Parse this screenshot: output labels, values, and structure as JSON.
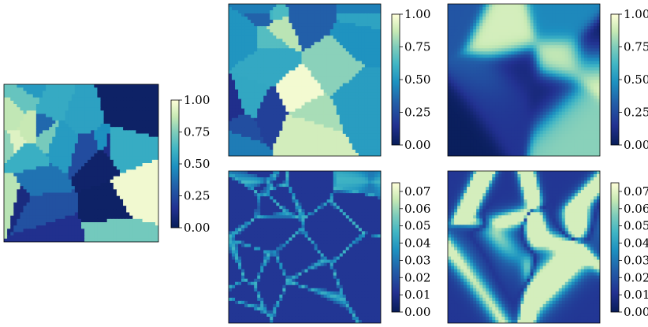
{
  "chart_data": [
    {
      "type": "heatmap",
      "title": "",
      "colormap": "YlGnBu_r",
      "cbar": {
        "ticks": [
          "0.00",
          "0.25",
          "0.50",
          "0.75",
          "1.00"
        ],
        "range": [
          0,
          1
        ]
      },
      "seed": 11,
      "cells": 26,
      "smooth": 0,
      "edges": false,
      "grid_rows": 10,
      "grid_cols": 10
    },
    {
      "type": "heatmap",
      "title": "",
      "colormap": "YlGnBu_r",
      "cbar": {
        "ticks": [
          "0.00",
          "0.25",
          "0.50",
          "0.75",
          "1.00"
        ],
        "range": [
          0,
          1
        ]
      },
      "seed": 23,
      "cells": 22,
      "smooth": 0,
      "edges": false,
      "grid_rows": 10,
      "grid_cols": 10
    },
    {
      "type": "heatmap",
      "title": "",
      "colormap": "YlGnBu_r",
      "cbar": {
        "ticks": [
          "0.00",
          "0.25",
          "0.50",
          "0.75",
          "1.00"
        ],
        "range": [
          0,
          1
        ]
      },
      "seed": 37,
      "cells": 14,
      "smooth": 1,
      "edges": false,
      "grid_rows": 10,
      "grid_cols": 10
    },
    {
      "type": "heatmap",
      "title": "",
      "colormap": "YlGnBu_r",
      "cbar": {
        "ticks": [
          "0.00",
          "0.01",
          "0.02",
          "0.03",
          "0.04",
          "0.05",
          "0.06",
          "0.07"
        ],
        "range": [
          0,
          0.075
        ]
      },
      "seed": 23,
      "cells": 22,
      "smooth": 0,
      "edges": true,
      "grid_rows": 10,
      "grid_cols": 10
    },
    {
      "type": "heatmap",
      "title": "",
      "colormap": "YlGnBu_r",
      "cbar": {
        "ticks": [
          "0.00",
          "0.01",
          "0.02",
          "0.03",
          "0.04",
          "0.05",
          "0.06",
          "0.07"
        ],
        "range": [
          0,
          0.075
        ]
      },
      "seed": 37,
      "cells": 14,
      "smooth": 1,
      "edges": true,
      "grid_rows": 10,
      "grid_cols": 10
    }
  ]
}
